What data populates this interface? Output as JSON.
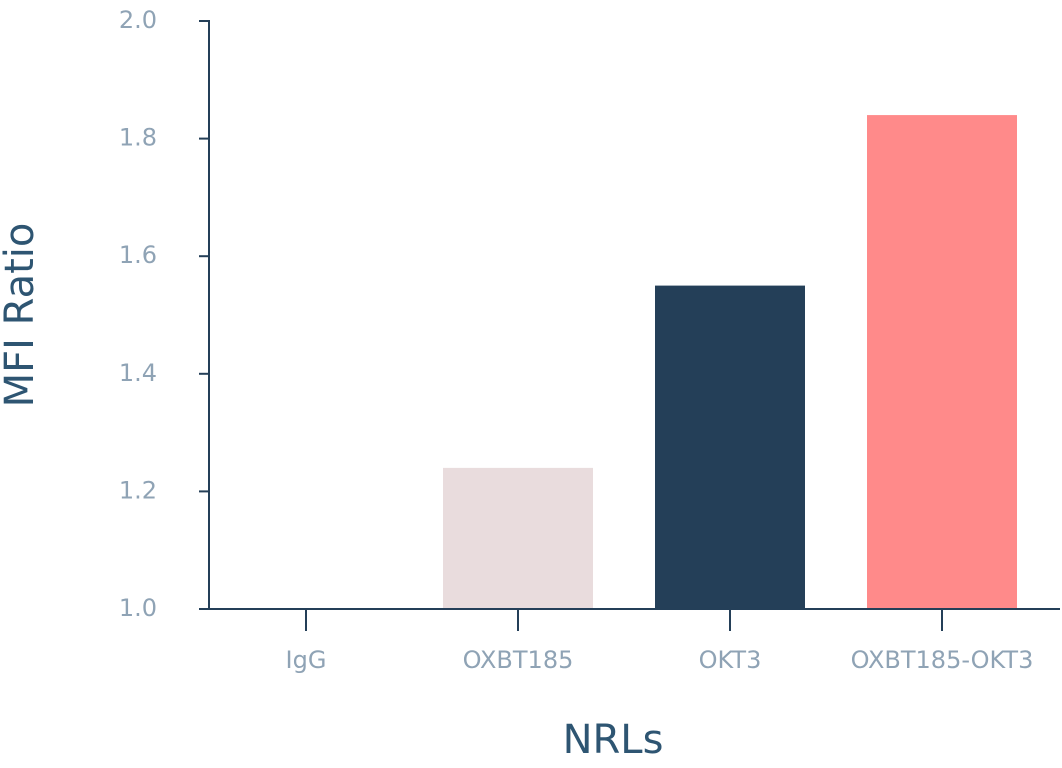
{
  "chart_data": {
    "type": "bar",
    "x_label": "NRLs",
    "y_label": "MFI Ratio",
    "categories": [
      "IgG",
      "OXBT185",
      "OKT3",
      "OXBT185-OKT3"
    ],
    "values": [
      1.0,
      1.24,
      1.55,
      1.84
    ],
    "colors": [
      "#e9dcdd",
      "#e9dcdd",
      "#243f58",
      "#ff8a8a"
    ],
    "ylim": [
      1.0,
      2.0
    ],
    "yticks": [
      {
        "value": 1.0,
        "label": "1.0"
      },
      1.2,
      1.4,
      1.6,
      1.8,
      {
        "value": 2.0,
        "label": "2.0"
      }
    ],
    "grid": false
  }
}
